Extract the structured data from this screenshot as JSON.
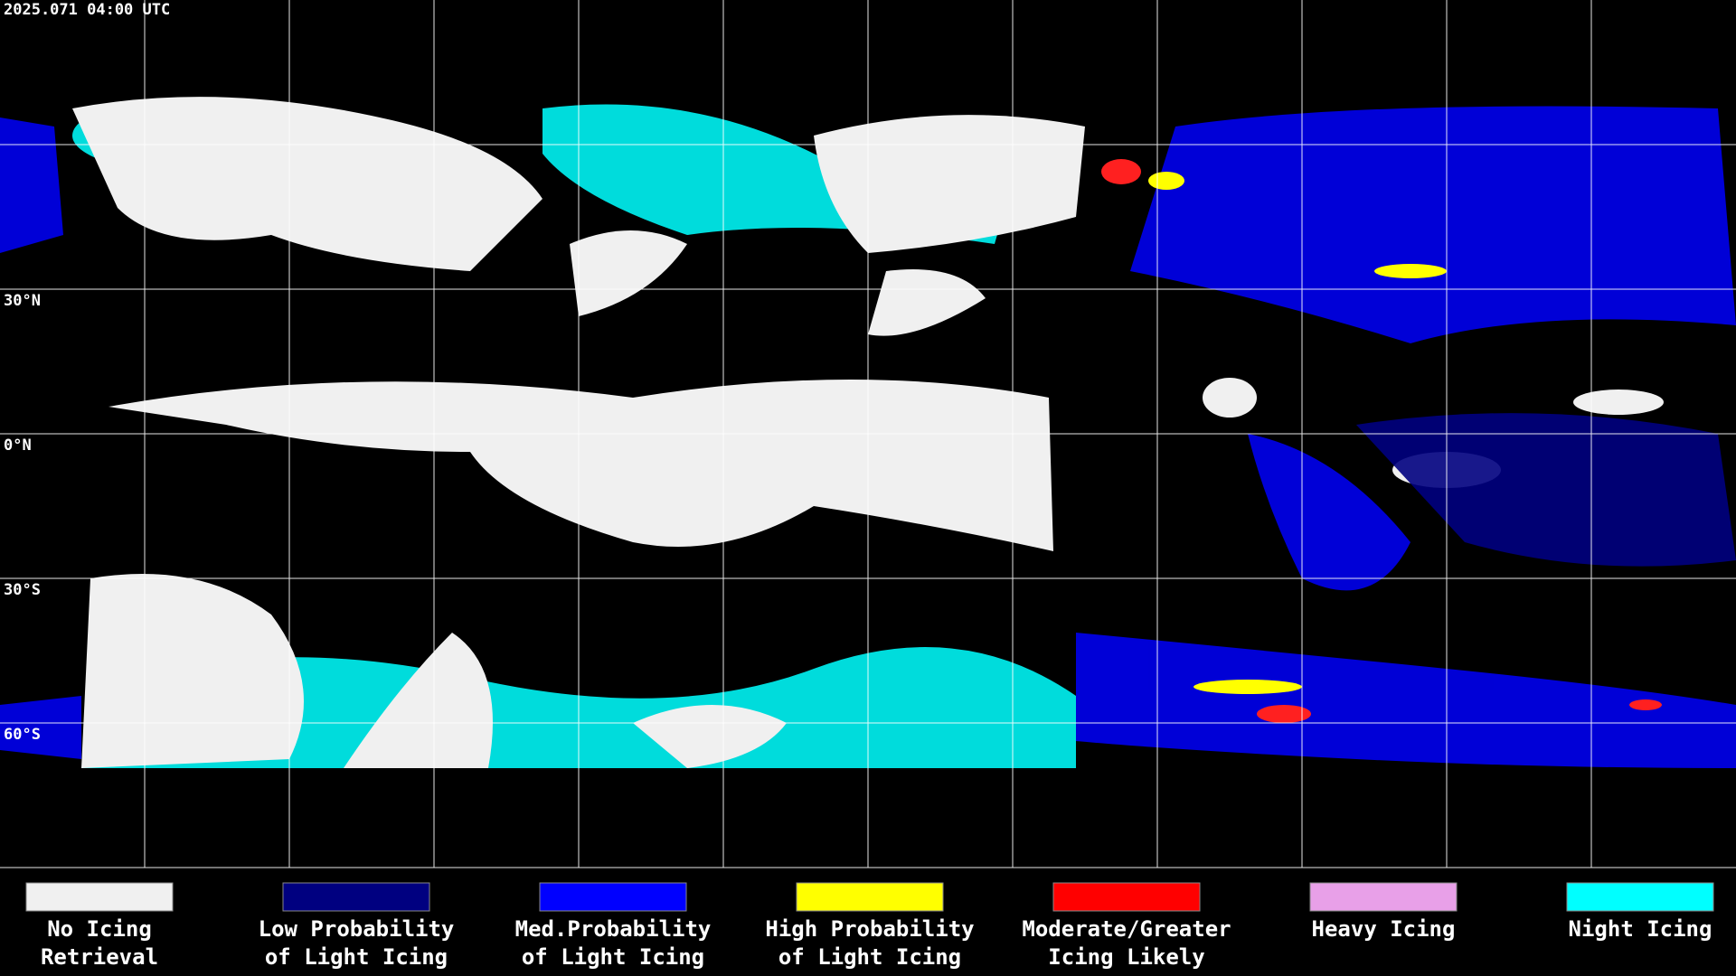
{
  "timestamp": "2025.071 04:00 UTC",
  "latitude_labels": [
    "30°N",
    "0°N",
    "30°S",
    "60°S"
  ],
  "legend": [
    {
      "label": [
        "No Icing",
        "Retrieval"
      ],
      "color": "#f0f0f0"
    },
    {
      "label": [
        "Low Probability",
        "of Light Icing"
      ],
      "color": "#000080"
    },
    {
      "label": [
        "Med.Probability",
        "of Light Icing"
      ],
      "color": "#0000ff"
    },
    {
      "label": [
        "High Probability",
        "of Light Icing"
      ],
      "color": "#ffff00"
    },
    {
      "label": [
        "Moderate/Greater",
        "Icing Likely"
      ],
      "color": "#ff0000"
    },
    {
      "label": [
        "Heavy Icing"
      ],
      "color": "#e8a0e8"
    },
    {
      "label": [
        "Night Icing"
      ],
      "color": "#00ffff"
    }
  ]
}
